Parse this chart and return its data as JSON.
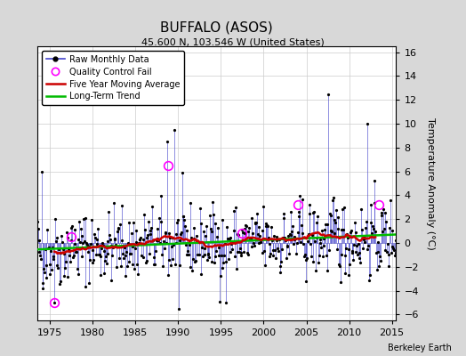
{
  "title": "BUFFALO (ASOS)",
  "subtitle": "45.600 N, 103.546 W (United States)",
  "ylabel": "Temperature Anomaly (°C)",
  "credit": "Berkeley Earth",
  "xlim": [
    1973.5,
    2015.5
  ],
  "ylim": [
    -6.5,
    16.5
  ],
  "yticks": [
    -6,
    -4,
    -2,
    0,
    2,
    4,
    6,
    8,
    10,
    12,
    14,
    16
  ],
  "xticks": [
    1975,
    1980,
    1985,
    1990,
    1995,
    2000,
    2005,
    2010,
    2015
  ],
  "plot_bg": "#ffffff",
  "fig_bg": "#d8d8d8",
  "raw_color": "#4444cc",
  "moving_avg_color": "#cc0000",
  "trend_color": "#00bb00",
  "qc_color": "#ff00ff",
  "seed": 42,
  "start_year": 1973.0,
  "end_year": 2015.5
}
